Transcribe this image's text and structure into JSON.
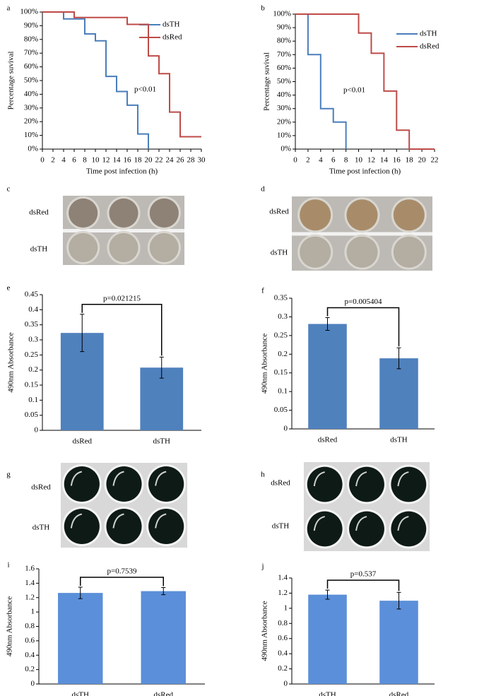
{
  "chart_data": [
    {
      "type": "line",
      "step": true,
      "panel": "a",
      "ylabel": "Percentage suvival",
      "xlabel": "Time post infection (h)",
      "annotation": "p<0.01",
      "legend": "right",
      "xlim": [
        0,
        30
      ],
      "xticks": [
        0,
        2,
        4,
        6,
        8,
        10,
        12,
        14,
        16,
        18,
        20,
        22,
        24,
        26,
        28,
        30
      ],
      "ylim": [
        0,
        100
      ],
      "yticks": [
        {
          "value": 0,
          "label": "0%"
        },
        {
          "value": 10,
          "label": "10%"
        },
        {
          "value": 20,
          "label": "20%"
        },
        {
          "value": 30,
          "label": "30%"
        },
        {
          "value": 40,
          "label": "40%"
        },
        {
          "value": 50,
          "label": "50%"
        },
        {
          "value": 60,
          "label": "60%"
        },
        {
          "value": 70,
          "label": "70%"
        },
        {
          "value": 80,
          "label": "80%"
        },
        {
          "value": 90,
          "label": "90%"
        },
        {
          "value": 100,
          "label": "100%"
        }
      ],
      "series": [
        {
          "name": "dsTH",
          "color": "#4a7ebb",
          "x": [
            0,
            4,
            8,
            10,
            12,
            14,
            16,
            18,
            20
          ],
          "values": [
            100,
            95,
            84,
            79,
            53,
            42,
            32,
            11,
            0
          ]
        },
        {
          "name": "dsRed",
          "color": "#be4b48",
          "x": [
            0,
            6,
            16,
            20,
            22,
            24,
            26,
            30
          ],
          "values": [
            100,
            96,
            91,
            68,
            55,
            27,
            9,
            9
          ]
        }
      ]
    },
    {
      "type": "line",
      "step": true,
      "panel": "b",
      "ylabel": "Percentage suvival",
      "xlabel": "Time post infection (h)",
      "annotation": "p<0.01",
      "legend": "right",
      "xlim": [
        0,
        22
      ],
      "xticks": [
        0,
        2,
        4,
        6,
        8,
        10,
        12,
        14,
        16,
        18,
        20,
        22
      ],
      "ylim": [
        0,
        100
      ],
      "yticks": [
        {
          "value": 0,
          "label": "0%"
        },
        {
          "value": 10,
          "label": "10%"
        },
        {
          "value": 20,
          "label": "20%"
        },
        {
          "value": 30,
          "label": "30%"
        },
        {
          "value": 40,
          "label": "40%"
        },
        {
          "value": 50,
          "label": "50%"
        },
        {
          "value": 60,
          "label": "60%"
        },
        {
          "value": 70,
          "label": "70%"
        },
        {
          "value": 80,
          "label": "80%"
        },
        {
          "value": 90,
          "label": "90%"
        },
        {
          "value": 100,
          "label": "100%"
        }
      ],
      "series": [
        {
          "name": "dsTH",
          "color": "#4a7ebb",
          "x": [
            0,
            2,
            4,
            6,
            8
          ],
          "values": [
            100,
            70,
            30,
            20,
            0
          ]
        },
        {
          "name": "dsRed",
          "color": "#be4b48",
          "x": [
            0,
            10,
            12,
            14,
            16,
            18,
            22
          ],
          "values": [
            100,
            86,
            71,
            43,
            14,
            0,
            0
          ]
        }
      ]
    },
    {
      "type": "bar",
      "panel": "e",
      "ylabel": "490nm Absorbance",
      "annotation": "p=0.021215",
      "color": "#4f81bd",
      "categories": [
        "dsRed",
        "dsTH"
      ],
      "values": [
        0.323,
        0.208
      ],
      "errors": [
        0.062,
        0.035
      ],
      "ylim": [
        0,
        0.45
      ],
      "yticks": [
        0,
        0.05,
        0.1,
        0.15,
        0.2,
        0.25,
        0.3,
        0.35,
        0.4,
        0.45
      ]
    },
    {
      "type": "bar",
      "panel": "f",
      "ylabel": "490nm Absorbance",
      "annotation": "p=0.005404",
      "color": "#4f81bd",
      "categories": [
        "dsRed",
        "dsTH"
      ],
      "values": [
        0.281,
        0.189
      ],
      "errors": [
        0.017,
        0.028
      ],
      "ylim": [
        0,
        0.35
      ],
      "yticks": [
        0,
        0.05,
        0.1,
        0.15,
        0.2,
        0.25,
        0.3,
        0.35
      ]
    },
    {
      "type": "bar",
      "panel": "i",
      "ylabel": "490nm Absorbance",
      "annotation": "p=0.7539",
      "color": "#5b8fd9",
      "categories": [
        "dsTH",
        "dsRed"
      ],
      "values": [
        1.265,
        1.29
      ],
      "errors": [
        0.08,
        0.05
      ],
      "ylim": [
        0,
        1.6
      ],
      "yticks": [
        0,
        0.2,
        0.4,
        0.6,
        0.8,
        1,
        1.2,
        1.4,
        1.6
      ]
    },
    {
      "type": "bar",
      "panel": "j",
      "ylabel": "490nm Absorbance",
      "annotation": "p=0.537",
      "color": "#5b8fd9",
      "categories": [
        "dsTH",
        "dsRed"
      ],
      "values": [
        1.18,
        1.1
      ],
      "errors": [
        0.06,
        0.11
      ],
      "ylim": [
        0,
        1.4
      ],
      "yticks": [
        0,
        0.2,
        0.4,
        0.6,
        0.8,
        1,
        1.2,
        1.4
      ]
    }
  ],
  "photos": [
    {
      "panel": "c",
      "rows": [
        "dsRed",
        "dsTH"
      ]
    },
    {
      "panel": "d",
      "rows": [
        "dsRed",
        "dsTH"
      ]
    },
    {
      "panel": "g",
      "rows": [
        "dsRed",
        "dsTH"
      ]
    },
    {
      "panel": "h",
      "rows": [
        "dsRed",
        "dsTH"
      ]
    }
  ]
}
